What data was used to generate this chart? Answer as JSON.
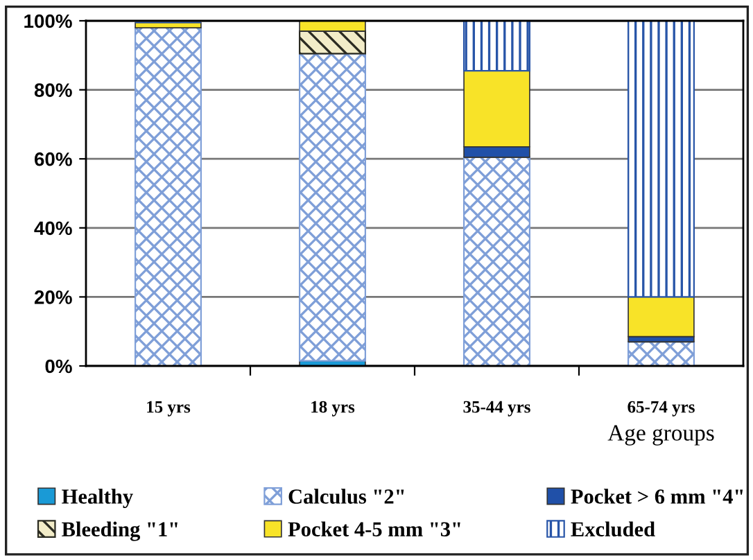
{
  "chart_data": {
    "type": "bar",
    "stacked": true,
    "xlabel": "Age groups",
    "categories": [
      "15 yrs",
      "18 yrs",
      "35-44 yrs",
      "65-74 yrs"
    ],
    "series": [
      {
        "name": "Healthy",
        "color": "#1a9ad6",
        "values": [
          null,
          1.5,
          0,
          0
        ]
      },
      {
        "name": "Calculus \"2\"",
        "color": "#7f9fd8",
        "values": [
          98,
          89,
          60.5,
          7
        ]
      },
      {
        "name": "Bleeding \"1\"",
        "color": "#2b2b22",
        "values": [
          0,
          6.5,
          0,
          0
        ]
      },
      {
        "name": "Pocket > 6 mm \"4\"",
        "color": "#2050a8",
        "values": [
          0,
          0,
          3,
          1.5
        ]
      },
      {
        "name": "Pocket 4-5 mm \"3\"",
        "color": "#f8e328",
        "values": [
          1.5,
          3,
          22,
          11.5
        ]
      },
      {
        "name": "Excluded",
        "color": "#2855a8",
        "values": [
          0,
          0,
          14.5,
          80
        ]
      }
    ],
    "ylim": [
      0,
      100
    ],
    "yticks": [
      {
        "value": 0,
        "label": "0%"
      },
      {
        "value": 20,
        "label": "20%"
      },
      {
        "value": 40,
        "label": "40%"
      },
      {
        "value": 60,
        "label": "60%"
      },
      {
        "value": 80,
        "label": "80%"
      },
      {
        "value": 100,
        "label": "100%"
      }
    ],
    "grid": "y",
    "legend": "bottom"
  }
}
